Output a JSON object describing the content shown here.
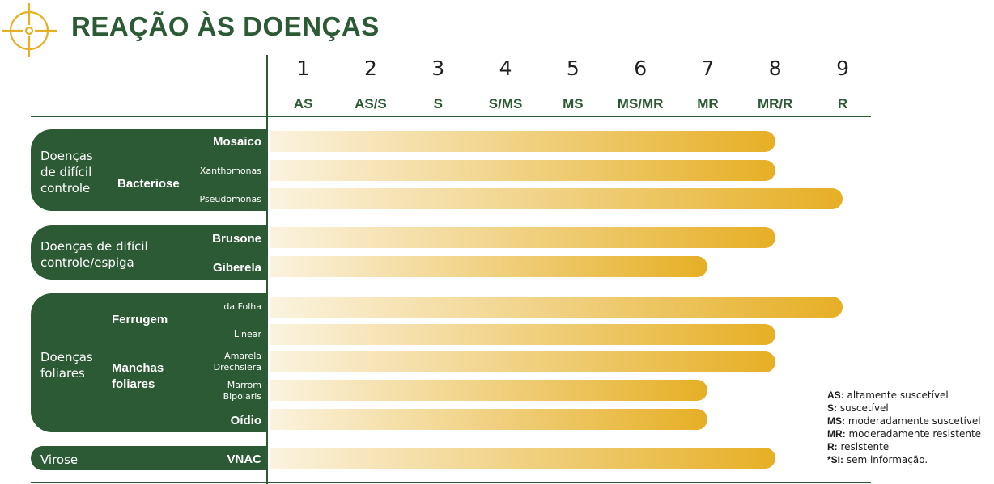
{
  "title": "REAÇÃO ÀS DOENÇAS",
  "colors": {
    "dark_green": "#2b5a34",
    "bar_start": "#fbf3df",
    "bar_end": "#e6af25"
  },
  "icons": {
    "target": "crosshair-target-icon"
  },
  "scale": [
    {
      "num": "1",
      "code": "AS"
    },
    {
      "num": "2",
      "code": "AS/S"
    },
    {
      "num": "3",
      "code": "S"
    },
    {
      "num": "4",
      "code": "S/MS"
    },
    {
      "num": "5",
      "code": "MS"
    },
    {
      "num": "6",
      "code": "MS/MR"
    },
    {
      "num": "7",
      "code": "MR"
    },
    {
      "num": "8",
      "code": "MR/R"
    },
    {
      "num": "9",
      "code": "R"
    }
  ],
  "groups": {
    "g1": "Doenças\nde difícil\ncontrole",
    "g2": "Doenças de difícil\ncontrole/espiga",
    "g3": "Doenças\nfoliares",
    "g4": "Virose"
  },
  "subgroups": {
    "bacteriose": "Bacteriose",
    "ferrugem": "Ferrugem",
    "manchas": "Manchas\nfoliares"
  },
  "rows": {
    "mosaico": "Mosaico",
    "xanthomonas": "Xanthomonas",
    "pseudomonas": "Pseudomonas",
    "brusone": "Brusone",
    "giberela": "Giberela",
    "dafolha": "da Folha",
    "linear": "Linear",
    "amarela": "Amarela\nDrechslera",
    "marrom": "Marrom\nBipolaris",
    "oidio": "Oídio",
    "vnac": "VNAC"
  },
  "legend": [
    {
      "abbr": "AS:",
      "text": " altamente suscetível"
    },
    {
      "abbr": "S:",
      "text": " suscetível"
    },
    {
      "abbr": "MS:",
      "text": " moderadamente suscetível"
    },
    {
      "abbr": "MR:",
      "text": " moderadamente resistente"
    },
    {
      "abbr": "R:",
      "text": " resistente"
    },
    {
      "abbr": "*SI:",
      "text": " sem informação."
    }
  ],
  "chart_data": {
    "type": "bar",
    "orientation": "horizontal",
    "x_range": [
      0,
      9
    ],
    "categories": [
      "Mosaico",
      "Xanthomonas",
      "Pseudomonas",
      "Brusone",
      "Giberela",
      "da Folha",
      "Linear",
      "Amarela Drechslera",
      "Marrom Bipolaris",
      "Oídio",
      "VNAC"
    ],
    "values": [
      7.5,
      7.5,
      8.5,
      7.5,
      6.5,
      8.5,
      7.5,
      7.5,
      6.5,
      6.5,
      7.5
    ]
  }
}
